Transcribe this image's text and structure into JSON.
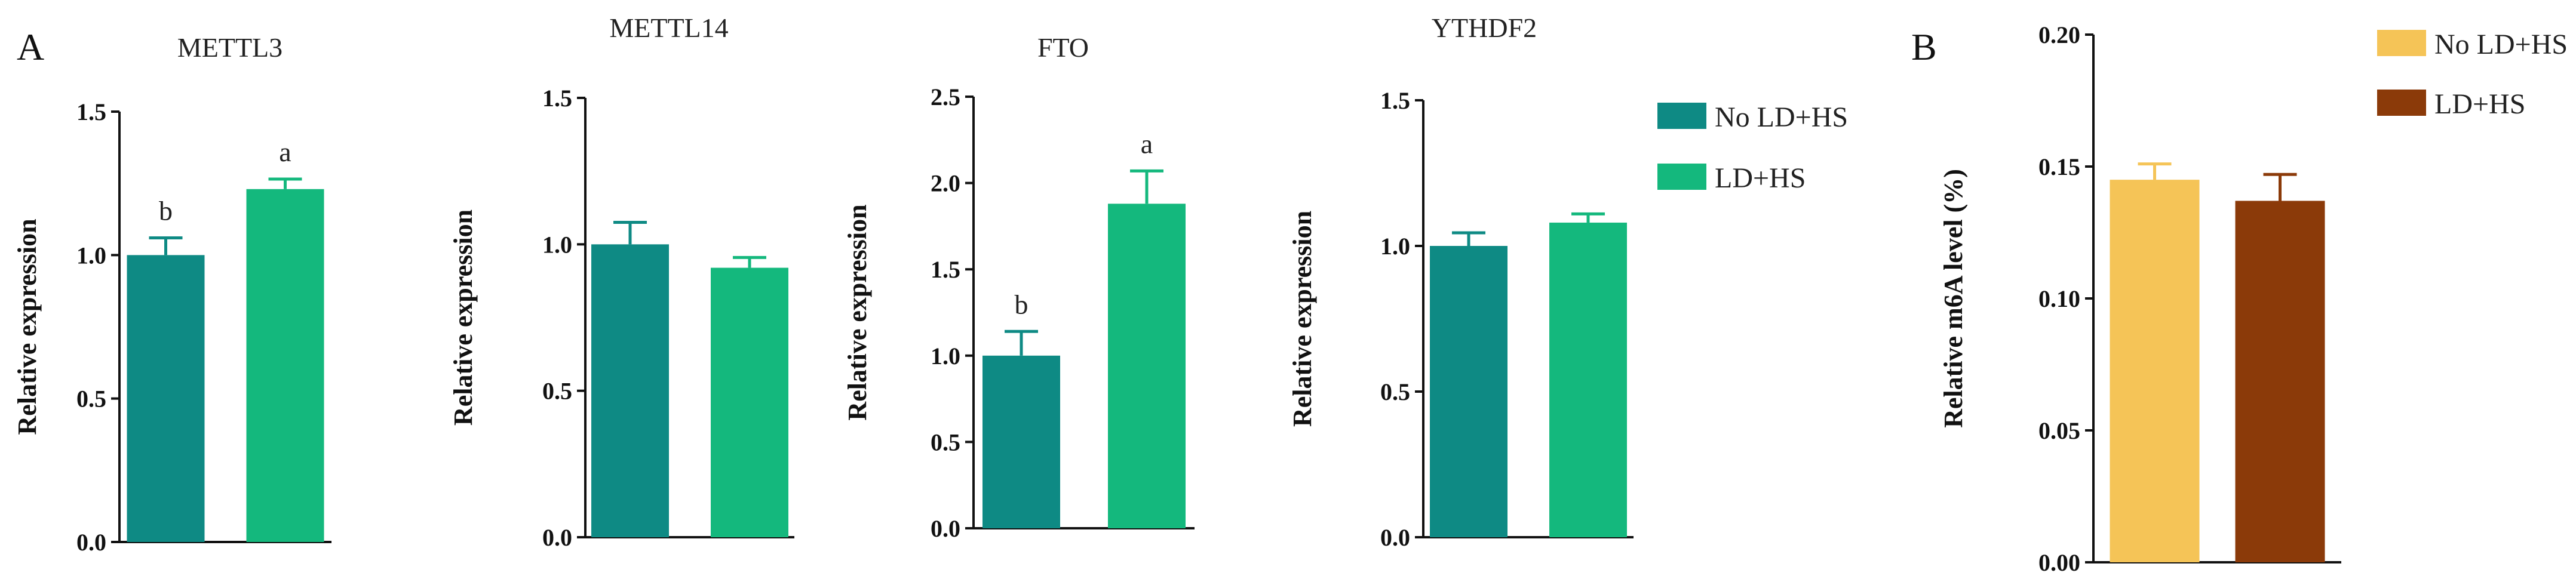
{
  "panels": {
    "a_label": "A",
    "b_label": "B"
  },
  "legend_a": [
    {
      "name": "No LD+HS",
      "color": "#0e8a84"
    },
    {
      "name": "LD+HS",
      "color": "#14b87d"
    }
  ],
  "legend_b": [
    {
      "name": "No LD+HS",
      "color": "#f5c457"
    },
    {
      "name": "LD+HS",
      "color": "#8b3a09"
    }
  ],
  "chart_data": [
    {
      "type": "bar",
      "panel": "A",
      "title": "METTL3",
      "ylabel": "Relative expression",
      "ylim": [
        0,
        1.5
      ],
      "ticks": [
        "0.0",
        "0.5",
        "1.0",
        "1.5"
      ],
      "tick_values": [
        0,
        0.5,
        1.0,
        1.5
      ],
      "series": [
        {
          "name": "No LD+HS",
          "value": 1.0,
          "error": 0.06,
          "label": "b",
          "color": "#0e8a84"
        },
        {
          "name": "LD+HS",
          "value": 1.23,
          "error": 0.035,
          "label": "a",
          "color": "#14b87d"
        }
      ]
    },
    {
      "type": "bar",
      "panel": "A",
      "title": "METTL14",
      "ylabel": "Relative expression",
      "ylim": [
        0,
        1.5
      ],
      "ticks": [
        "0.0",
        "0.5",
        "1.0",
        "1.5"
      ],
      "tick_values": [
        0,
        0.5,
        1.0,
        1.5
      ],
      "series": [
        {
          "name": "No LD+HS",
          "value": 1.0,
          "error": 0.075,
          "label": "",
          "color": "#0e8a84"
        },
        {
          "name": "LD+HS",
          "value": 0.92,
          "error": 0.035,
          "label": "",
          "color": "#14b87d"
        }
      ]
    },
    {
      "type": "bar",
      "panel": "A",
      "title": "FTO",
      "ylabel": "Relative expression",
      "ylim": [
        0,
        2.5
      ],
      "ticks": [
        "0.0",
        "0.5",
        "1.0",
        "1.5",
        "2.0",
        "2.5"
      ],
      "tick_values": [
        0,
        0.5,
        1.0,
        1.5,
        2.0,
        2.5
      ],
      "series": [
        {
          "name": "No LD+HS",
          "value": 1.0,
          "error": 0.14,
          "label": "b",
          "color": "#0e8a84"
        },
        {
          "name": "LD+HS",
          "value": 1.88,
          "error": 0.19,
          "label": "a",
          "color": "#14b87d"
        }
      ]
    },
    {
      "type": "bar",
      "panel": "A",
      "title": "YTHDF2",
      "ylabel": "Relative expression",
      "ylim": [
        0,
        1.5
      ],
      "ticks": [
        "0.0",
        "0.5",
        "1.0",
        "1.5"
      ],
      "tick_values": [
        0,
        0.5,
        1.0,
        1.5
      ],
      "series": [
        {
          "name": "No LD+HS",
          "value": 1.0,
          "error": 0.045,
          "label": "",
          "color": "#0e8a84"
        },
        {
          "name": "LD+HS",
          "value": 1.08,
          "error": 0.03,
          "label": "",
          "color": "#14b87d"
        }
      ]
    },
    {
      "type": "bar",
      "panel": "B",
      "title": "",
      "ylabel": "Relative m6A level (%)",
      "ylim": [
        0,
        0.2
      ],
      "ticks": [
        "0.00",
        "0.05",
        "0.10",
        "0.15",
        "0.20"
      ],
      "tick_values": [
        0,
        0.05,
        0.1,
        0.15,
        0.2
      ],
      "series": [
        {
          "name": "No LD+HS",
          "value": 0.145,
          "error": 0.006,
          "label": "",
          "color": "#f5c457"
        },
        {
          "name": "LD+HS",
          "value": 0.137,
          "error": 0.01,
          "label": "",
          "color": "#8b3a09"
        }
      ]
    }
  ]
}
